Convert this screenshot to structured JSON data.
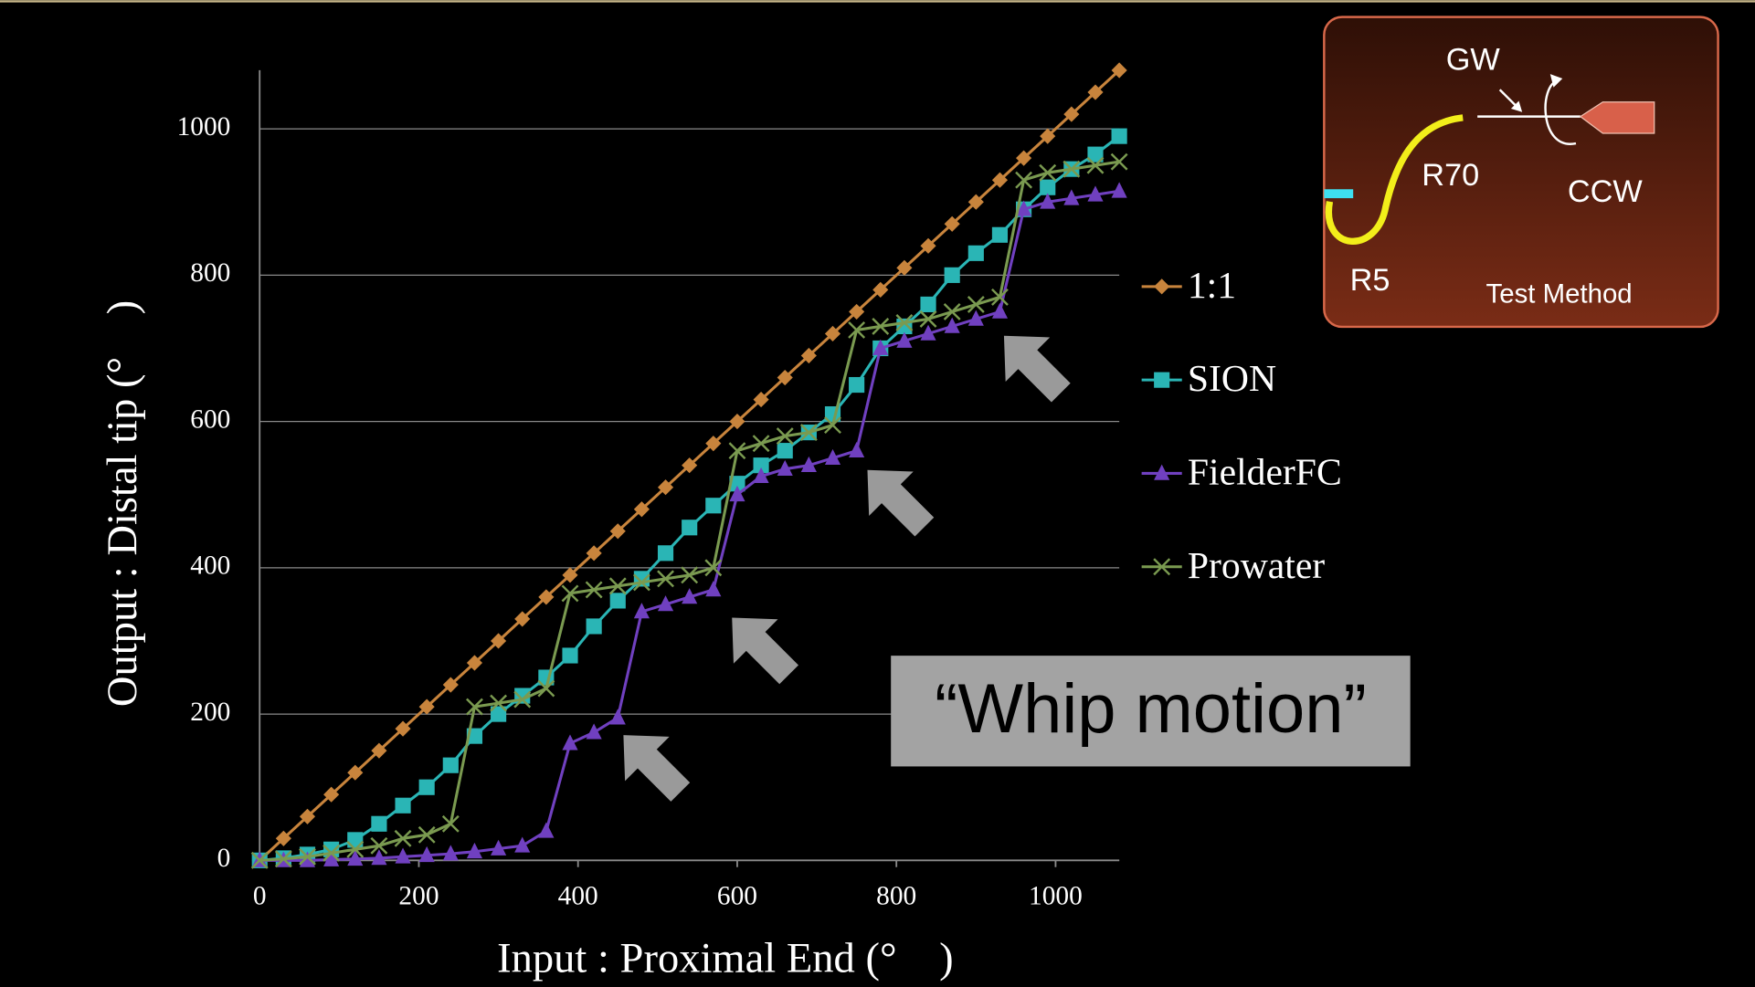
{
  "chart_data": {
    "type": "line",
    "x_label": "Input : Proximal End (°　)",
    "y_label": "Output : Distal tip (°　)",
    "annotation": "“Whip motion”",
    "inset_labels": [
      "GW",
      "R70",
      "CCW",
      "R5",
      "Test Method"
    ],
    "xlim": [
      0,
      1080
    ],
    "ylim": [
      0,
      1100
    ],
    "xticks": [
      0,
      200,
      400,
      600,
      800,
      1000
    ],
    "yticks": [
      0,
      200,
      400,
      600,
      800,
      1000
    ],
    "grid": true,
    "legend": "right",
    "x": [
      0,
      30,
      60,
      90,
      120,
      150,
      180,
      210,
      240,
      270,
      300,
      330,
      360,
      390,
      420,
      450,
      480,
      510,
      540,
      570,
      600,
      630,
      660,
      690,
      720,
      750,
      780,
      810,
      840,
      870,
      900,
      930,
      960,
      990,
      1020,
      1050,
      1080
    ],
    "series": [
      {
        "name": "1:1",
        "color": "#c8843c",
        "marker": "diamond",
        "values": [
          0,
          30,
          60,
          90,
          120,
          150,
          180,
          210,
          240,
          270,
          300,
          330,
          360,
          390,
          420,
          450,
          480,
          510,
          540,
          570,
          600,
          630,
          660,
          690,
          720,
          750,
          780,
          810,
          840,
          870,
          900,
          930,
          960,
          990,
          1020,
          1050,
          1080
        ]
      },
      {
        "name": "SION",
        "color": "#2ab5b5",
        "marker": "square",
        "values": [
          0,
          3,
          8,
          15,
          28,
          50,
          75,
          100,
          130,
          170,
          200,
          225,
          250,
          280,
          320,
          355,
          385,
          420,
          455,
          485,
          515,
          540,
          560,
          585,
          610,
          650,
          700,
          730,
          760,
          800,
          830,
          855,
          890,
          920,
          945,
          965,
          990
        ]
      },
      {
        "name": "FielderFC",
        "color": "#7040c0",
        "marker": "triangle",
        "values": [
          0,
          0,
          0,
          1,
          2,
          3,
          5,
          7,
          9,
          12,
          16,
          20,
          40,
          160,
          175,
          195,
          340,
          350,
          360,
          370,
          500,
          525,
          535,
          540,
          550,
          560,
          700,
          710,
          720,
          730,
          740,
          750,
          890,
          900,
          905,
          910,
          915
        ]
      },
      {
        "name": "Prowater",
        "color": "#7a9a50",
        "marker": "x",
        "values": [
          0,
          2,
          5,
          10,
          15,
          20,
          30,
          35,
          50,
          210,
          215,
          220,
          235,
          365,
          370,
          375,
          380,
          385,
          390,
          400,
          560,
          570,
          580,
          585,
          595,
          725,
          730,
          735,
          740,
          750,
          760,
          770,
          930,
          940,
          945,
          950,
          955
        ]
      }
    ]
  }
}
